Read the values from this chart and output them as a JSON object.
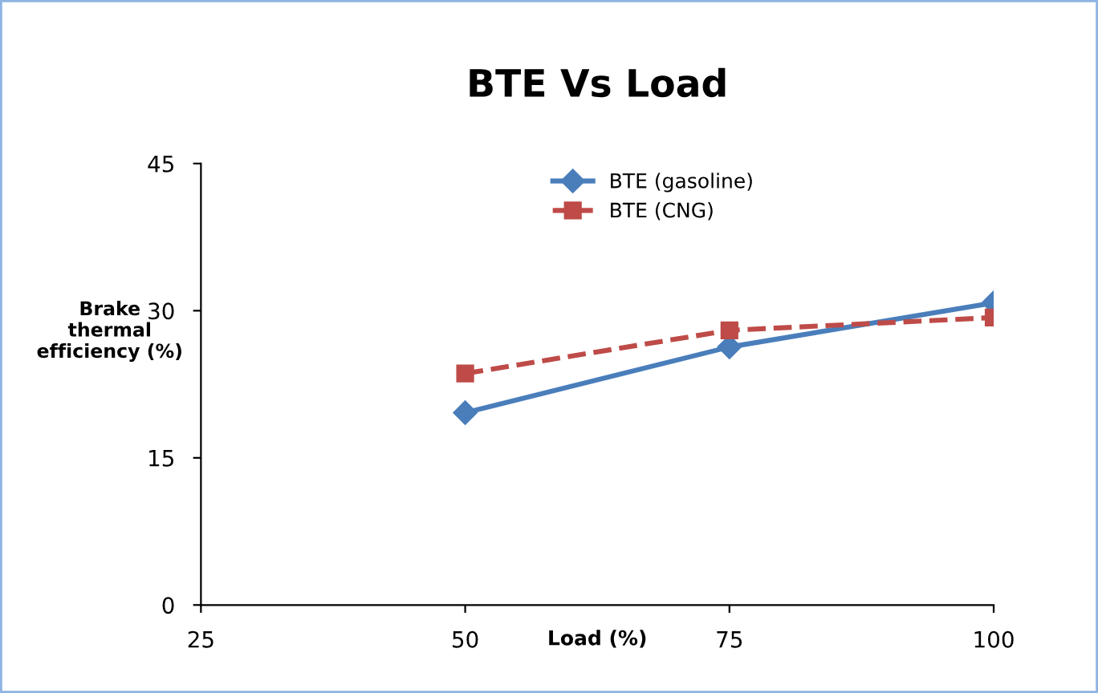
{
  "chart_data": {
    "type": "line",
    "title": "BTE Vs Load",
    "xlabel": "Load (%)",
    "ylabel": "Brake\nthermal\nefficiency (%)",
    "x": [
      50,
      75,
      100
    ],
    "series": [
      {
        "name": "BTE (gasoline)",
        "color": "#4a7ebb",
        "values": [
          19.6,
          26.3,
          30.8
        ],
        "marker": "diamond",
        "line_style": "solid"
      },
      {
        "name": "BTE (CNG)",
        "color": "#be4b48",
        "values": [
          23.6,
          28.0,
          29.3
        ],
        "marker": "square",
        "line_style": "dashed"
      }
    ],
    "xlim": [
      25,
      100
    ],
    "xticks": [
      25,
      50,
      75,
      100
    ],
    "ylim": [
      0,
      45
    ],
    "yticks": [
      0,
      15,
      30,
      45
    ],
    "grid": false,
    "legend": "top right"
  }
}
